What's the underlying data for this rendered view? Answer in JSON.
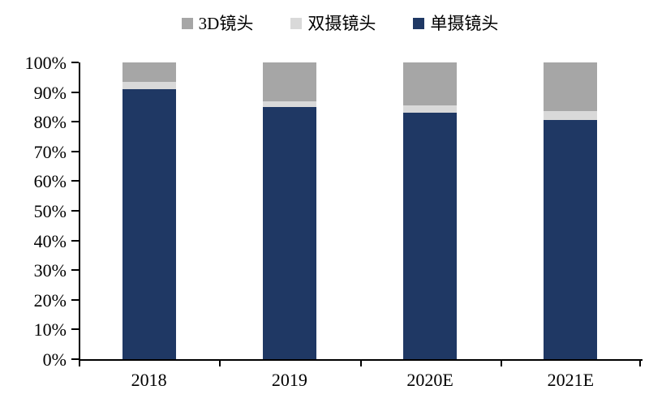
{
  "chart_data": {
    "type": "bar",
    "subtype": "stacked-100",
    "units": "percent",
    "title": "",
    "xlabel": "",
    "ylabel": "",
    "grid": false,
    "categories": [
      "2018",
      "2019",
      "2020E",
      "2021E"
    ],
    "series": [
      {
        "name": "单摄镜头",
        "color": "#1F3864",
        "values": [
          91,
          85,
          83,
          80.5
        ]
      },
      {
        "name": "双摄镜头",
        "color": "#D9D9D9",
        "values": [
          2.5,
          2,
          2.5,
          3
        ]
      },
      {
        "name": "3D镜头",
        "color": "#A6A6A6",
        "values": [
          6.5,
          13,
          14.5,
          16.5
        ]
      }
    ],
    "legend": {
      "position": "top",
      "order": [
        "3D镜头",
        "双摄镜头",
        "单摄镜头"
      ]
    },
    "y_axis": {
      "min": 0,
      "max": 100,
      "tick_step": 10,
      "tick_labels": [
        "0%",
        "10%",
        "20%",
        "30%",
        "40%",
        "50%",
        "60%",
        "70%",
        "80%",
        "90%",
        "100%"
      ]
    },
    "colors": {
      "axis": "#000000",
      "text": "#000000",
      "background": "#FFFFFF"
    }
  }
}
